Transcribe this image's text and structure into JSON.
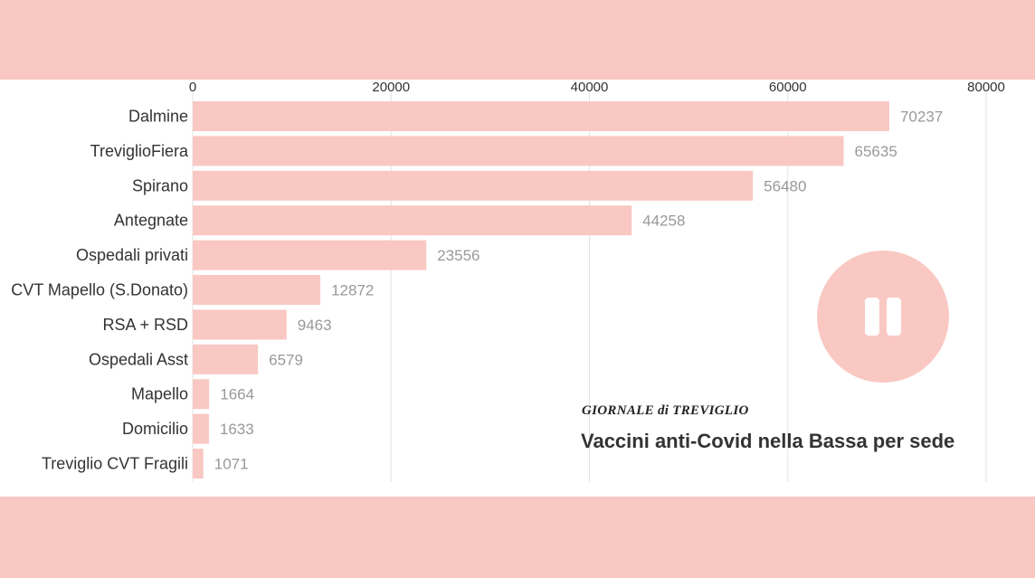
{
  "chart_data": {
    "type": "bar",
    "orientation": "horizontal",
    "title": "Vaccini anti-Covid nella Bassa per sede",
    "categories": [
      "Dalmine",
      "TreviglioFiera",
      "Spirano",
      "Antegnate",
      "Ospedali privati",
      "CVT Mapello (S.Donato)",
      "RSA + RSD",
      "Ospedali Asst",
      "Mapello",
      "Domicilio",
      "Treviglio CVT Fragili"
    ],
    "values": [
      70237,
      65635,
      56480,
      44258,
      23556,
      12872,
      9463,
      6579,
      1664,
      1633,
      1071
    ],
    "xticks": [
      0,
      20000,
      40000,
      60000,
      80000
    ],
    "xlim": [
      0,
      80000
    ],
    "grid": true,
    "axis_position": "top"
  },
  "branding": {
    "logo_text": "GIORNALE di TREVIGLIO"
  },
  "colors": {
    "band": "#f9c8c3",
    "bar": "#f9c8c3",
    "value_text": "#999999",
    "label_text": "#333333"
  },
  "controls": {
    "play_state": "playing",
    "icon": "pause-icon"
  }
}
